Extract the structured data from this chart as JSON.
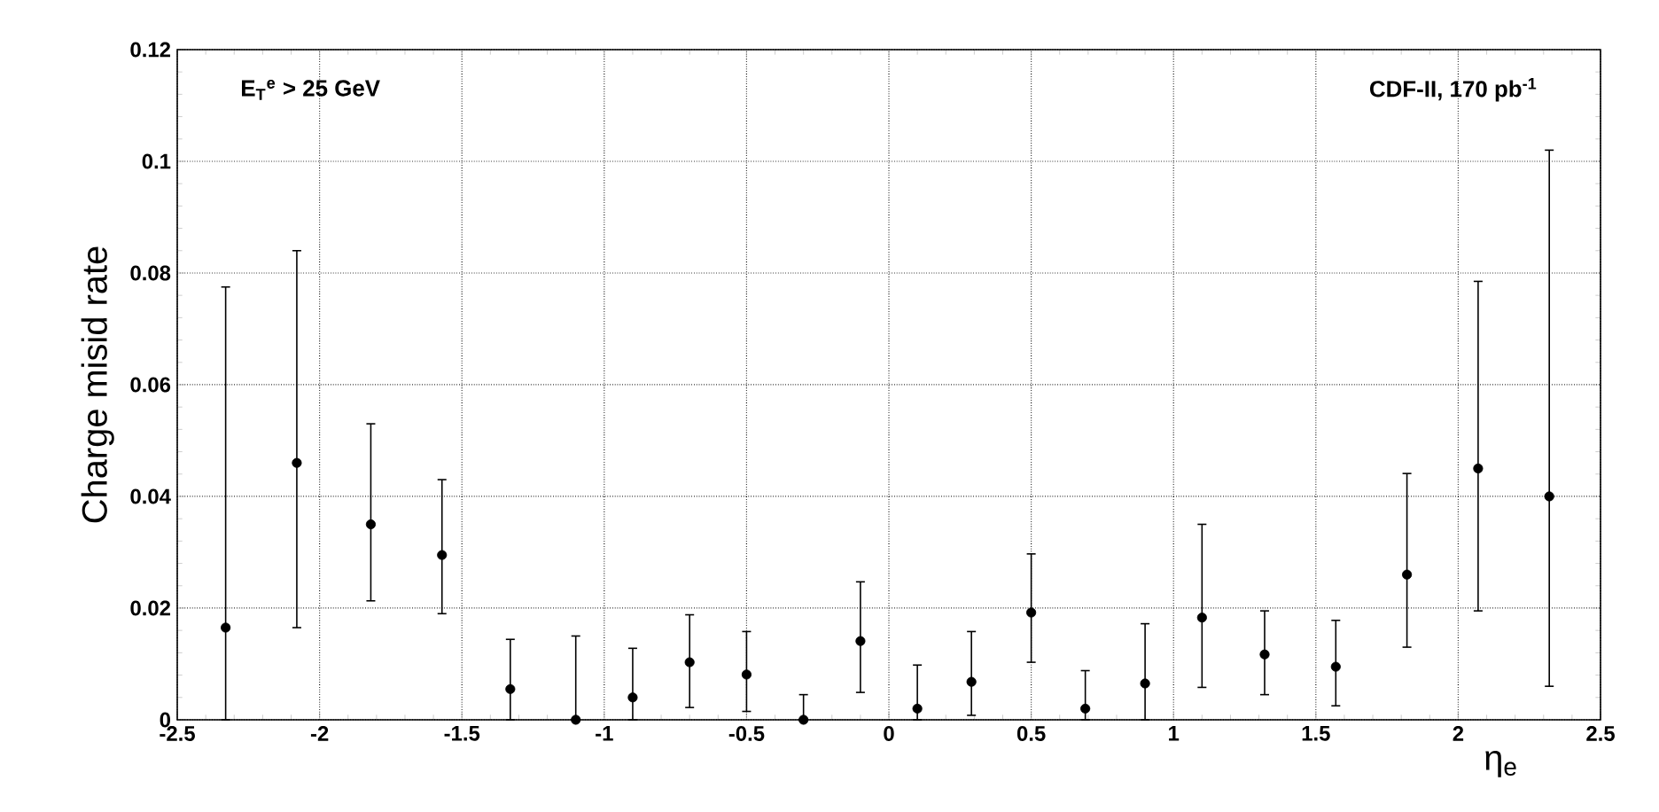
{
  "chart_data": {
    "type": "scatter",
    "xlabel": "η$_{e}$",
    "ylabel": "Charge misid rate",
    "annotations": [
      "E$_{T}$$^{e}$ > 25 GeV",
      "CDF-II, 170 pb$^{-1}$"
    ],
    "x": [
      -2.33,
      -2.08,
      -1.82,
      -1.57,
      -1.33,
      -1.1,
      -0.9,
      -0.7,
      -0.5,
      -0.3,
      -0.1,
      0.1,
      0.29,
      0.5,
      0.69,
      0.9,
      1.1,
      1.32,
      1.57,
      1.82,
      2.07,
      2.32
    ],
    "values": [
      0.0165,
      0.046,
      0.035,
      0.0295,
      0.0055,
      0.0,
      0.004,
      0.0103,
      0.0081,
      0.0,
      0.0141,
      0.002,
      0.0068,
      0.0192,
      0.002,
      0.0065,
      0.0183,
      0.0117,
      0.0095,
      0.026,
      0.045,
      0.04
    ],
    "errors": [
      [
        0.0,
        0.0775
      ],
      [
        0.0165,
        0.084
      ],
      [
        0.0213,
        0.053
      ],
      [
        0.019,
        0.043
      ],
      [
        0.0,
        0.0144
      ],
      [
        0.0,
        0.015
      ],
      [
        0.0,
        0.0128
      ],
      [
        0.0022,
        0.0188
      ],
      [
        0.0015,
        0.0158
      ],
      [
        0.0,
        0.0045
      ],
      [
        0.0049,
        0.0247
      ],
      [
        0.0,
        0.0098
      ],
      [
        0.0008,
        0.0158
      ],
      [
        0.0103,
        0.0297
      ],
      [
        0.0,
        0.0088
      ],
      [
        0.0,
        0.0172
      ],
      [
        0.0058,
        0.035
      ],
      [
        0.0045,
        0.0195
      ],
      [
        0.0025,
        0.0178
      ],
      [
        0.013,
        0.0441
      ],
      [
        0.0195,
        0.0785
      ],
      [
        0.006,
        0.102
      ]
    ],
    "color": "#000000",
    "marker": "circle",
    "xlim": [
      -2.5,
      2.5
    ],
    "ylim": [
      0,
      0.12
    ],
    "xticks": [
      -2.5,
      -2,
      -1.5,
      -1,
      -0.5,
      0,
      0.5,
      1,
      1.5,
      2,
      2.5
    ],
    "yticks": [
      0,
      0.02,
      0.04,
      0.06,
      0.08,
      0.1,
      0.12
    ],
    "grid": true
  }
}
